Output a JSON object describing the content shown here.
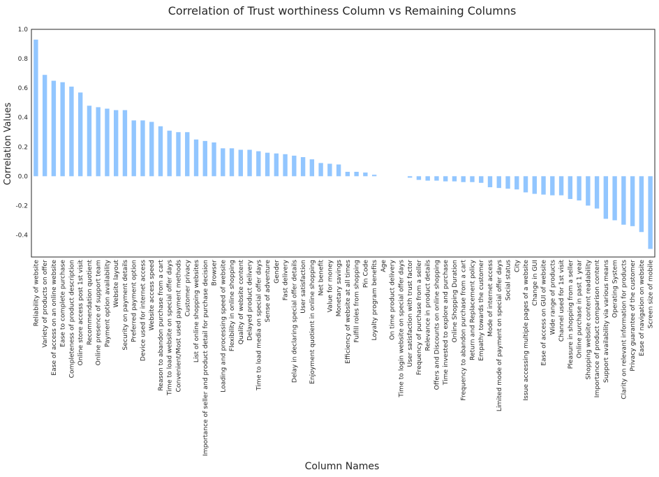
{
  "chart_data": {
    "type": "bar",
    "title": "Correlation of Trust worthiness Column vs Remaining Columns",
    "xlabel": "Column Names",
    "ylabel": "Correlation Values",
    "ylim": [
      -0.55,
      1.0
    ],
    "yticks": [
      -0.4,
      -0.2,
      0.0,
      0.2,
      0.4,
      0.6,
      0.8,
      1.0
    ],
    "ytick_labels": [
      "-0.4",
      "-0.2",
      "0.0",
      "0.2",
      "0.4",
      "0.6",
      "0.8",
      "1.0"
    ],
    "grid": false,
    "bar_color": "#92c6ff",
    "categories": [
      "Reliability of website",
      "Variety of products on offer",
      "Ease of access on an online website",
      "Ease to complete purchase",
      "Completeness of product description",
      "Online store access post 1st visit",
      "Recommendation quotient",
      "Online presence of support team",
      "Payment option availability",
      "Website layout",
      "Security on payment details",
      "Preferred payment option",
      "Device used for internet access",
      "Website access speed",
      "Reason to abandon purchase from a cart",
      "Time to load website on special offer days",
      "Convenient/Most used payment methods",
      "Customer privacy",
      "List of online shopping websites",
      "Importance of seller and product detail for purchase decision",
      "Browser",
      "Loading and processing speed of website",
      "Flexibility in online shopping",
      "Quality of website content",
      "Delayed product delivery",
      "Time to load media on special offer days",
      "Sense of adventure",
      "Gender",
      "Fast delivery",
      "Delay in declaring special offer details",
      "User satisfaction",
      "Enjoyment quotient in online shopping",
      "Net benefit",
      "Value for money",
      "Monetary savings",
      "Efficiency of website at all times",
      "Fulfill roles from shopping",
      "Pin Code",
      "Loyalty program benefits",
      "Age",
      "On time product delivery",
      "Time to login website on special offer days",
      "User satisfaction with trust factor",
      "Frequency of purchase from a seller",
      "Relevance in product details",
      "Offers and Discounts on online shopping",
      "Time invested to explore and purchase",
      "Online Shopping Duration",
      "Frequency to abandon purchase from a cart",
      "Return and Replacement policy",
      "Empathy towards the customer",
      "Mode of internet access",
      "Limited mode of payment on special offer days",
      "Social status",
      "City",
      "Issue accessing multiple pages of a website",
      "Change in GUI",
      "Ease of access on GUI of website",
      "Wide range of products",
      "Channel used for 1st visit",
      "Pleasure in shopping from a seller",
      "Online purchase in past 1 year",
      "Shopping website content readability",
      "Importance of product comparison content",
      "Support availability via various means",
      "Operating System",
      "Clarity on relevant information for products",
      "Privacy guarantee of the customer",
      "Ease of navigation on website",
      "Screen size of mobile"
    ],
    "values": [
      0.93,
      0.69,
      0.65,
      0.64,
      0.61,
      0.57,
      0.48,
      0.47,
      0.46,
      0.45,
      0.45,
      0.38,
      0.38,
      0.37,
      0.34,
      0.31,
      0.3,
      0.3,
      0.25,
      0.24,
      0.23,
      0.19,
      0.19,
      0.18,
      0.18,
      0.17,
      0.16,
      0.155,
      0.15,
      0.14,
      0.13,
      0.115,
      0.09,
      0.085,
      0.08,
      0.03,
      0.03,
      0.025,
      0.01,
      0.0,
      0.0,
      0.0,
      -0.01,
      -0.025,
      -0.03,
      -0.03,
      -0.035,
      -0.035,
      -0.04,
      -0.04,
      -0.045,
      -0.075,
      -0.08,
      -0.085,
      -0.09,
      -0.11,
      -0.12,
      -0.125,
      -0.13,
      -0.13,
      -0.155,
      -0.165,
      -0.2,
      -0.22,
      -0.29,
      -0.3,
      -0.33,
      -0.34,
      -0.38,
      -0.495
    ]
  }
}
